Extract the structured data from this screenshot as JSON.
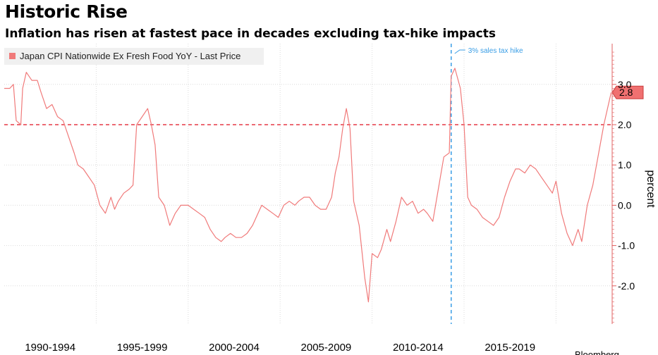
{
  "title": "Historic Rise",
  "subtitle": "Inflation has risen at fastest pace in decades excluding tax-hike impacts",
  "chart_data": {
    "type": "line",
    "ylabel": "percent",
    "ylim": [
      -2.95,
      3.95
    ],
    "y_ticks": [
      {
        "value": 3.0,
        "label": "3.0"
      },
      {
        "value": 2.0,
        "label": "2.0"
      },
      {
        "value": 1.0,
        "label": "1.0"
      },
      {
        "value": 0.0,
        "label": "0.0"
      },
      {
        "value": -1.0,
        "label": "-1.0"
      },
      {
        "value": -2.0,
        "label": "-2.0"
      }
    ],
    "xlim": [
      1990.0,
      2022.4
    ],
    "x_categories": [
      {
        "label": "1990-1994",
        "start": 1990.0,
        "end": 1995.0
      },
      {
        "label": "1995-1999",
        "start": 1995.0,
        "end": 2000.0
      },
      {
        "label": "2000-2004",
        "start": 2000.0,
        "end": 2005.0
      },
      {
        "label": "2005-2009",
        "start": 2005.0,
        "end": 2010.0
      },
      {
        "label": "2010-2014",
        "start": 2010.0,
        "end": 2015.0
      },
      {
        "label": "2015-2019",
        "start": 2015.0,
        "end": 2020.0
      }
    ],
    "x_gridlines": [
      1995.0,
      2000.0,
      2005.0,
      2010.0,
      2015.0,
      2020.0
    ],
    "series": [
      {
        "name": "Japan CPI Nationwide Ex Fresh Food YoY - Last Price",
        "color": "#f07a7a",
        "last_value": 2.8,
        "last_value_label": "2.8",
        "points": [
          [
            1990.0,
            2.9
          ],
          [
            1990.3,
            2.9
          ],
          [
            1990.5,
            3.0
          ],
          [
            1990.65,
            2.1
          ],
          [
            1990.9,
            2.0
          ],
          [
            1991.0,
            2.9
          ],
          [
            1991.2,
            3.3
          ],
          [
            1991.5,
            3.1
          ],
          [
            1991.8,
            3.1
          ],
          [
            1992.0,
            2.8
          ],
          [
            1992.3,
            2.4
          ],
          [
            1992.6,
            2.5
          ],
          [
            1992.9,
            2.2
          ],
          [
            1993.2,
            2.1
          ],
          [
            1993.5,
            1.7
          ],
          [
            1993.8,
            1.3
          ],
          [
            1994.0,
            1.0
          ],
          [
            1994.3,
            0.9
          ],
          [
            1994.6,
            0.7
          ],
          [
            1994.9,
            0.5
          ],
          [
            1995.2,
            0.0
          ],
          [
            1995.5,
            -0.2
          ],
          [
            1995.8,
            0.2
          ],
          [
            1996.0,
            -0.1
          ],
          [
            1996.2,
            0.1
          ],
          [
            1996.5,
            0.3
          ],
          [
            1996.8,
            0.4
          ],
          [
            1997.0,
            0.5
          ],
          [
            1997.2,
            2.0
          ],
          [
            1997.5,
            2.2
          ],
          [
            1997.8,
            2.4
          ],
          [
            1998.0,
            2.0
          ],
          [
            1998.2,
            1.5
          ],
          [
            1998.4,
            0.2
          ],
          [
            1998.7,
            0.0
          ],
          [
            1999.0,
            -0.5
          ],
          [
            1999.3,
            -0.2
          ],
          [
            1999.6,
            0.0
          ],
          [
            2000.0,
            0.0
          ],
          [
            2000.3,
            -0.1
          ],
          [
            2000.6,
            -0.2
          ],
          [
            2000.9,
            -0.3
          ],
          [
            2001.2,
            -0.6
          ],
          [
            2001.5,
            -0.8
          ],
          [
            2001.8,
            -0.9
          ],
          [
            2002.0,
            -0.8
          ],
          [
            2002.3,
            -0.7
          ],
          [
            2002.6,
            -0.8
          ],
          [
            2002.9,
            -0.8
          ],
          [
            2003.2,
            -0.7
          ],
          [
            2003.5,
            -0.5
          ],
          [
            2003.8,
            -0.2
          ],
          [
            2004.0,
            0.0
          ],
          [
            2004.3,
            -0.1
          ],
          [
            2004.6,
            -0.2
          ],
          [
            2004.9,
            -0.3
          ],
          [
            2005.2,
            0.0
          ],
          [
            2005.5,
            0.1
          ],
          [
            2005.8,
            0.0
          ],
          [
            2006.0,
            0.1
          ],
          [
            2006.3,
            0.2
          ],
          [
            2006.6,
            0.2
          ],
          [
            2006.9,
            0.0
          ],
          [
            2007.2,
            -0.1
          ],
          [
            2007.5,
            -0.1
          ],
          [
            2007.8,
            0.2
          ],
          [
            2008.0,
            0.8
          ],
          [
            2008.2,
            1.2
          ],
          [
            2008.4,
            1.9
          ],
          [
            2008.6,
            2.4
          ],
          [
            2008.8,
            1.9
          ],
          [
            2009.0,
            0.1
          ],
          [
            2009.3,
            -0.5
          ],
          [
            2009.6,
            -1.8
          ],
          [
            2009.8,
            -2.4
          ],
          [
            2010.0,
            -1.2
          ],
          [
            2010.3,
            -1.3
          ],
          [
            2010.5,
            -1.1
          ],
          [
            2010.8,
            -0.6
          ],
          [
            2011.0,
            -0.9
          ],
          [
            2011.3,
            -0.4
          ],
          [
            2011.6,
            0.2
          ],
          [
            2011.9,
            0.0
          ],
          [
            2012.2,
            0.1
          ],
          [
            2012.5,
            -0.2
          ],
          [
            2012.8,
            -0.1
          ],
          [
            2013.0,
            -0.2
          ],
          [
            2013.3,
            -0.4
          ],
          [
            2013.6,
            0.4
          ],
          [
            2013.9,
            1.2
          ],
          [
            2014.2,
            1.3
          ],
          [
            2014.3,
            3.2
          ],
          [
            2014.5,
            3.4
          ],
          [
            2014.8,
            2.9
          ],
          [
            2015.0,
            2.0
          ],
          [
            2015.2,
            0.2
          ],
          [
            2015.4,
            0.0
          ],
          [
            2015.7,
            -0.1
          ],
          [
            2016.0,
            -0.3
          ],
          [
            2016.3,
            -0.4
          ],
          [
            2016.6,
            -0.5
          ],
          [
            2016.9,
            -0.3
          ],
          [
            2017.2,
            0.2
          ],
          [
            2017.5,
            0.6
          ],
          [
            2017.8,
            0.9
          ],
          [
            2018.0,
            0.9
          ],
          [
            2018.3,
            0.8
          ],
          [
            2018.6,
            1.0
          ],
          [
            2018.9,
            0.9
          ],
          [
            2019.2,
            0.7
          ],
          [
            2019.5,
            0.5
          ],
          [
            2019.8,
            0.3
          ],
          [
            2020.0,
            0.6
          ],
          [
            2020.3,
            -0.2
          ],
          [
            2020.6,
            -0.7
          ],
          [
            2020.9,
            -1.0
          ],
          [
            2021.2,
            -0.6
          ],
          [
            2021.4,
            -0.9
          ],
          [
            2021.7,
            0.0
          ],
          [
            2022.0,
            0.5
          ],
          [
            2022.2,
            1.0
          ],
          [
            2022.4,
            1.5
          ],
          [
            2022.6,
            2.0
          ],
          [
            2022.8,
            2.4
          ],
          [
            2023.0,
            2.8
          ]
        ]
      }
    ],
    "reference_lines": [
      {
        "axis": "y",
        "value": 2.0,
        "style": "dashed",
        "color": "#e63946"
      },
      {
        "axis": "x",
        "value": 2014.3,
        "style": "dashed",
        "color": "#3a9ee6",
        "label": "3% sales tax hike"
      }
    ],
    "legend_position": "top-left",
    "grid": true
  },
  "footer": {
    "source": "Bloomberg"
  }
}
